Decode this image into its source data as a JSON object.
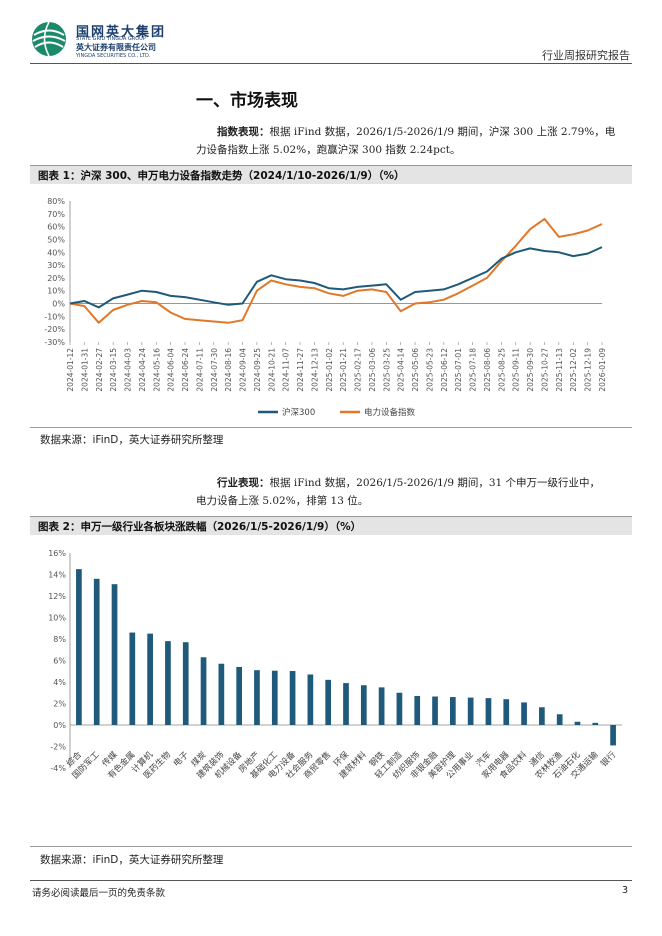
{
  "header": {
    "company_cn": "国网英大集团",
    "company_en": "STATE GRID YINGDA GROUP",
    "securities_cn": "英大证券有限责任公司",
    "securities_en": "YINGDA SECURITIES CO., LTD.",
    "report_type": "行业周报研究报告"
  },
  "section": {
    "title": "一、市场表现"
  },
  "para1": {
    "lead": "指数表现：",
    "line1": "根据 iFind 数据，2026/1/5-2026/1/9 期间，沪深 300 上涨 2.79%，电",
    "line2": "力设备指数上涨 5.02%，跑赢沪深 300 指数 2.24pct。"
  },
  "figure1": {
    "title": "图表 1：沪深 300、申万电力设备指数走势（2024/1/10-2026/1/9）（%）",
    "source": "数据来源：iFinD，英大证券研究所整理"
  },
  "para2": {
    "lead": "行业表现：",
    "line1": "根据 iFind 数据，2026/1/5-2026/1/9 期间，31 个申万一级行业中，",
    "line2": "电力设备上涨 5.02%，排第 13 位。"
  },
  "figure2": {
    "title": "图表 2：申万一级行业各板块涨跌幅（2026/1/5-2026/1/9）（%）",
    "source": "数据来源：iFinD，英大证券研究所整理"
  },
  "footer": {
    "disclaimer": "请务必阅读最后一页的免责条款",
    "page": "3"
  },
  "colors": {
    "csi300": "#1f5a7a",
    "power_equipment": "#e0782a",
    "bar": "#1f5a7a"
  },
  "chart_data": [
    {
      "type": "line",
      "title": "",
      "ylim": [
        -30,
        80
      ],
      "yticks": [
        "-30%",
        "-20%",
        "-10%",
        "0%",
        "10%",
        "20%",
        "30%",
        "40%",
        "50%",
        "60%",
        "70%",
        "80%"
      ],
      "ytick_values": [
        -30,
        -20,
        -10,
        0,
        10,
        20,
        30,
        40,
        50,
        60,
        70,
        80
      ],
      "x_ticks": [
        "2024-01-12",
        "2024-01-31",
        "2024-02-27",
        "2024-03-15",
        "2024-04-03",
        "2024-04-24",
        "2024-05-16",
        "2024-06-04",
        "2024-06-24",
        "2024-07-11",
        "2024-07-30",
        "2024-08-16",
        "2024-09-04",
        "2024-09-25",
        "2024-10-21",
        "2024-11-07",
        "2024-11-27",
        "2024-12-13",
        "2025-01-02",
        "2025-01-21",
        "2025-02-17",
        "2025-03-06",
        "2025-03-25",
        "2025-04-14",
        "2025-05-06",
        "2025-05-23",
        "2025-06-12",
        "2025-07-01",
        "2025-07-18",
        "2025-08-06",
        "2025-08-25",
        "2025-09-11",
        "2025-09-30",
        "2025-10-27",
        "2025-11-13",
        "2025-12-02",
        "2025-12-19",
        "2026-01-09"
      ],
      "legend_position": "bottom",
      "grid": false,
      "series": [
        {
          "name": "沪深300",
          "values": [
            0,
            2,
            -3,
            4,
            7,
            10,
            9,
            6,
            5,
            3,
            1,
            -1,
            0,
            17,
            22,
            19,
            18,
            16,
            12,
            11,
            13,
            14,
            15,
            3,
            9,
            10,
            11,
            15,
            20,
            25,
            35,
            40,
            43,
            41,
            40,
            37,
            39,
            44
          ]
        },
        {
          "name": "电力设备指数",
          "values": [
            0,
            -2,
            -15,
            -5,
            -1,
            2,
            1,
            -7,
            -12,
            -13,
            -14,
            -15,
            -13,
            10,
            18,
            15,
            13,
            12,
            8,
            6,
            10,
            11,
            9,
            -6,
            0,
            1,
            3,
            8,
            14,
            20,
            33,
            45,
            58,
            66,
            52,
            54,
            57,
            62
          ]
        }
      ]
    },
    {
      "type": "bar",
      "title": "",
      "ylim": [
        -4,
        16
      ],
      "yticks": [
        "-4%",
        "-2%",
        "0%",
        "2%",
        "4%",
        "6%",
        "8%",
        "10%",
        "12%",
        "14%",
        "16%"
      ],
      "ytick_values": [
        -4,
        -2,
        0,
        2,
        4,
        6,
        8,
        10,
        12,
        14,
        16
      ],
      "grid": false,
      "categories": [
        "综合",
        "国防军工",
        "传媒",
        "有色金属",
        "计算机",
        "医药生物",
        "电子",
        "煤炭",
        "建筑装饰",
        "机械设备",
        "房地产",
        "基础化工",
        "电力设备",
        "社会服务",
        "商贸零售",
        "环保",
        "建筑材料",
        "钢铁",
        "轻工制造",
        "纺织服饰",
        "非银金融",
        "美容护理",
        "公用事业",
        "汽车",
        "家用电器",
        "食品饮料",
        "通信",
        "农林牧渔",
        "石油石化",
        "交通运输",
        "银行"
      ],
      "values": [
        14.5,
        13.6,
        13.1,
        8.6,
        8.5,
        7.8,
        7.7,
        6.3,
        5.7,
        5.4,
        5.1,
        5.05,
        5.02,
        4.7,
        4.2,
        3.9,
        3.7,
        3.5,
        3.0,
        2.7,
        2.65,
        2.6,
        2.55,
        2.5,
        2.4,
        2.1,
        1.65,
        1.0,
        0.3,
        0.2,
        -1.9
      ]
    }
  ]
}
